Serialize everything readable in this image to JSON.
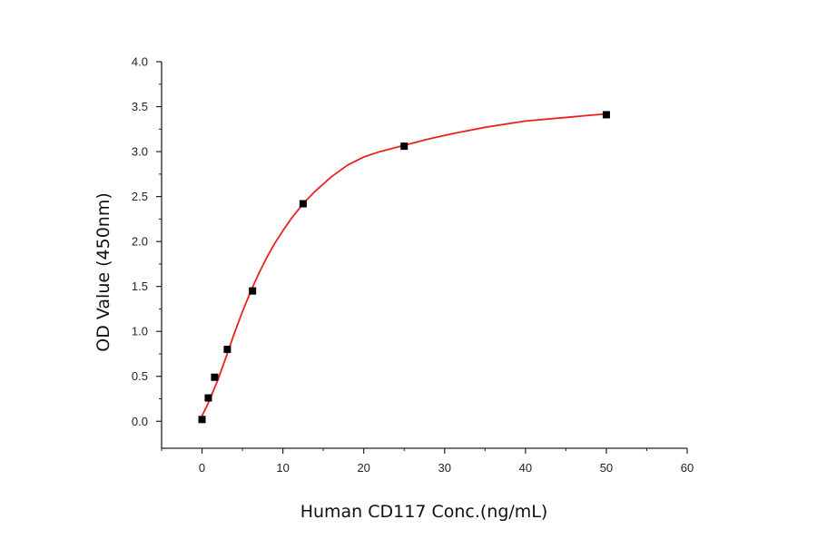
{
  "chart_data": {
    "type": "scatter",
    "title": "",
    "xlabel": "Human CD117 Conc.(ng/mL)",
    "ylabel": "OD Value (450nm)",
    "xlim": [
      -5,
      60
    ],
    "ylim": [
      -0.3,
      4.0
    ],
    "x_ticks": [
      "0",
      "10",
      "20",
      "30",
      "40",
      "50",
      "60"
    ],
    "y_ticks": [
      "0.0",
      "0.5",
      "1.0",
      "1.5",
      "2.0",
      "2.5",
      "3.0",
      "3.5",
      "4.0"
    ],
    "grid": false,
    "series": [
      {
        "points": [
          {
            "x": 0,
            "y": 0.02
          },
          {
            "x": 0.78,
            "y": 0.26
          },
          {
            "x": 1.56,
            "y": 0.49
          },
          {
            "x": 3.13,
            "y": 0.8
          },
          {
            "x": 6.25,
            "y": 1.45
          },
          {
            "x": 12.5,
            "y": 2.42
          },
          {
            "x": 25,
            "y": 3.06
          },
          {
            "x": 50,
            "y": 3.41
          }
        ],
        "marker": "square",
        "color": "#000000"
      }
    ],
    "fit_curve": {
      "color": "#e8231f",
      "points": [
        [
          0,
          0.06
        ],
        [
          0.5,
          0.15
        ],
        [
          1,
          0.25
        ],
        [
          1.5,
          0.36
        ],
        [
          2,
          0.47
        ],
        [
          3,
          0.72
        ],
        [
          4,
          0.98
        ],
        [
          5,
          1.22
        ],
        [
          6,
          1.44
        ],
        [
          7,
          1.64
        ],
        [
          8,
          1.82
        ],
        [
          9,
          1.98
        ],
        [
          10,
          2.12
        ],
        [
          11,
          2.25
        ],
        [
          12.5,
          2.42
        ],
        [
          14,
          2.56
        ],
        [
          16,
          2.72
        ],
        [
          18,
          2.85
        ],
        [
          20,
          2.94
        ],
        [
          22,
          3.0
        ],
        [
          25,
          3.07
        ],
        [
          28,
          3.14
        ],
        [
          31,
          3.2
        ],
        [
          35,
          3.27
        ],
        [
          40,
          3.34
        ],
        [
          45,
          3.38
        ],
        [
          50,
          3.42
        ]
      ]
    }
  }
}
